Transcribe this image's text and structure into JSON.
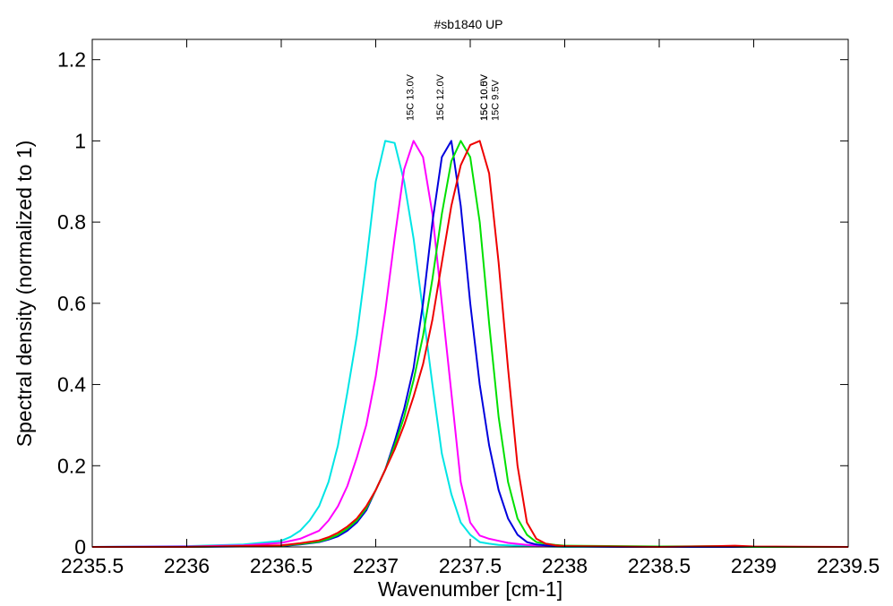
{
  "chart_data": {
    "type": "line",
    "title": "#sb1840 UP",
    "xlabel": "Wavenumber [cm-1]",
    "ylabel": "Spectral density (normalized to 1)",
    "xlim": [
      2235.5,
      2239.5
    ],
    "ylim": [
      0,
      1.25
    ],
    "x_ticks": [
      2235.5,
      2236,
      2236.5,
      2237,
      2237.5,
      2238,
      2238.5,
      2239,
      2239.5
    ],
    "x_tick_labels": [
      "2235.5",
      "2236",
      "2236.5",
      "2237",
      "2237.5",
      "2238",
      "2238.5",
      "2239",
      "2239.5"
    ],
    "y_ticks": [
      0,
      0.2,
      0.4,
      0.6,
      0.8,
      1,
      1.2
    ],
    "y_tick_labels": [
      "0",
      "0.2",
      "0.4",
      "0.6",
      "0.8",
      "1",
      "1.2"
    ],
    "grid": false,
    "legend": "none",
    "peak_labels": [
      {
        "text": "15C 13.0V",
        "x": 2237.18
      },
      {
        "text": "15C 12.0V",
        "x": 2237.34
      },
      {
        "text": "15C 10.5V",
        "x": 2237.57
      },
      {
        "text": "15C 10.0V",
        "x": 2237.57
      },
      {
        "text": "15C 9.5V",
        "x": 2237.63
      }
    ],
    "series": [
      {
        "color": "#00e5e5",
        "x": [
          2235.5,
          2236.0,
          2236.3,
          2236.5,
          2236.55,
          2236.6,
          2236.65,
          2236.7,
          2236.75,
          2236.8,
          2236.85,
          2236.9,
          2236.95,
          2237.0,
          2237.05,
          2237.1,
          2237.15,
          2237.2,
          2237.25,
          2237.3,
          2237.35,
          2237.4,
          2237.45,
          2237.5,
          2237.55,
          2237.6,
          2237.65,
          2237.7,
          2237.8,
          2237.9,
          2238.0,
          2238.5,
          2239.0,
          2239.5
        ],
        "values": [
          0.0,
          0.002,
          0.006,
          0.015,
          0.025,
          0.04,
          0.065,
          0.1,
          0.16,
          0.25,
          0.38,
          0.52,
          0.7,
          0.9,
          1.0,
          0.995,
          0.9,
          0.76,
          0.58,
          0.4,
          0.23,
          0.13,
          0.06,
          0.03,
          0.012,
          0.008,
          0.005,
          0.004,
          0.002,
          0.001,
          0.0,
          0.0,
          0.0,
          0.0
        ]
      },
      {
        "color": "#ff00ff",
        "x": [
          2235.5,
          2236.0,
          2236.3,
          2236.5,
          2236.6,
          2236.7,
          2236.75,
          2236.8,
          2236.85,
          2236.9,
          2236.95,
          2237.0,
          2237.05,
          2237.1,
          2237.15,
          2237.2,
          2237.25,
          2237.3,
          2237.35,
          2237.4,
          2237.45,
          2237.5,
          2237.55,
          2237.6,
          2237.65,
          2237.7,
          2237.8,
          2237.9,
          2238.0,
          2238.5,
          2239.0,
          2239.5
        ],
        "values": [
          0.0,
          0.001,
          0.004,
          0.01,
          0.02,
          0.04,
          0.065,
          0.1,
          0.15,
          0.22,
          0.3,
          0.42,
          0.58,
          0.76,
          0.93,
          1.0,
          0.96,
          0.82,
          0.6,
          0.38,
          0.16,
          0.06,
          0.028,
          0.02,
          0.015,
          0.01,
          0.005,
          0.002,
          0.001,
          0.0,
          0.0,
          0.0
        ]
      },
      {
        "color": "#0000dd",
        "x": [
          2235.5,
          2236.0,
          2236.5,
          2236.6,
          2236.7,
          2236.75,
          2236.8,
          2236.85,
          2236.9,
          2236.95,
          2237.0,
          2237.05,
          2237.1,
          2237.15,
          2237.2,
          2237.25,
          2237.3,
          2237.35,
          2237.4,
          2237.45,
          2237.5,
          2237.55,
          2237.6,
          2237.65,
          2237.7,
          2237.75,
          2237.8,
          2237.85,
          2237.9,
          2237.95,
          2238.0,
          2238.1,
          2238.3,
          2238.5,
          2239.0,
          2239.5
        ],
        "values": [
          0.0,
          0.0,
          0.002,
          0.006,
          0.012,
          0.018,
          0.026,
          0.04,
          0.06,
          0.09,
          0.14,
          0.19,
          0.26,
          0.34,
          0.44,
          0.6,
          0.8,
          0.96,
          1.0,
          0.84,
          0.6,
          0.4,
          0.25,
          0.14,
          0.07,
          0.03,
          0.012,
          0.006,
          0.004,
          0.003,
          0.002,
          0.001,
          0.0,
          0.0,
          0.0,
          0.0
        ]
      },
      {
        "color": "#00e000",
        "x": [
          2235.5,
          2236.0,
          2236.5,
          2236.6,
          2236.7,
          2236.75,
          2236.8,
          2236.85,
          2236.9,
          2236.95,
          2237.0,
          2237.05,
          2237.1,
          2237.15,
          2237.2,
          2237.25,
          2237.3,
          2237.35,
          2237.4,
          2237.45,
          2237.5,
          2237.55,
          2237.6,
          2237.65,
          2237.7,
          2237.75,
          2237.8,
          2237.85,
          2237.9,
          2237.95,
          2238.0,
          2238.5,
          2238.8,
          2239.0,
          2239.5
        ],
        "values": [
          0.0,
          0.0,
          0.003,
          0.007,
          0.013,
          0.02,
          0.03,
          0.045,
          0.065,
          0.095,
          0.14,
          0.19,
          0.25,
          0.32,
          0.41,
          0.52,
          0.66,
          0.82,
          0.95,
          1.0,
          0.96,
          0.8,
          0.55,
          0.32,
          0.16,
          0.07,
          0.03,
          0.012,
          0.008,
          0.005,
          0.003,
          0.001,
          0.002,
          0.0,
          0.0
        ]
      },
      {
        "color": "#ee0000",
        "x": [
          2235.5,
          2236.0,
          2236.5,
          2236.6,
          2236.7,
          2236.75,
          2236.8,
          2236.85,
          2236.9,
          2236.95,
          2237.0,
          2237.05,
          2237.1,
          2237.15,
          2237.2,
          2237.25,
          2237.3,
          2237.35,
          2237.4,
          2237.45,
          2237.5,
          2237.55,
          2237.6,
          2237.65,
          2237.7,
          2237.75,
          2237.8,
          2237.85,
          2237.9,
          2237.95,
          2238.0,
          2238.5,
          2238.8,
          2238.9,
          2239.0,
          2239.5
        ],
        "values": [
          0.0,
          0.0,
          0.004,
          0.009,
          0.016,
          0.024,
          0.035,
          0.05,
          0.07,
          0.1,
          0.14,
          0.19,
          0.24,
          0.3,
          0.37,
          0.45,
          0.56,
          0.7,
          0.84,
          0.94,
          0.99,
          1.0,
          0.92,
          0.7,
          0.44,
          0.2,
          0.06,
          0.02,
          0.008,
          0.004,
          0.002,
          0.0,
          0.002,
          0.003,
          0.001,
          0.0
        ]
      }
    ]
  }
}
